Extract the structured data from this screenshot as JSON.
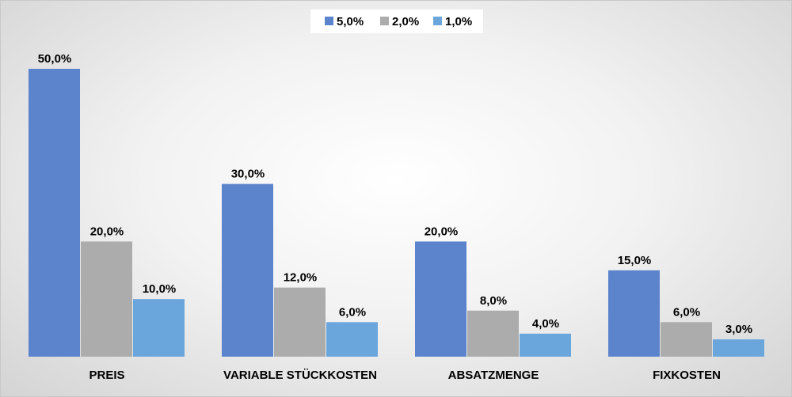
{
  "chart_data": {
    "type": "bar",
    "categories": [
      "PREIS",
      "VARIABLE STÜCKKOSTEN",
      "ABSATZMENGE",
      "FIXKOSTEN"
    ],
    "series": [
      {
        "name": "5,0%",
        "color": "#5b84cc",
        "values": [
          50.0,
          30.0,
          20.0,
          15.0
        ],
        "labels": [
          "50,0%",
          "30,0%",
          "20,0%",
          "15,0%"
        ]
      },
      {
        "name": "2,0%",
        "color": "#acacac",
        "values": [
          20.0,
          12.0,
          8.0,
          6.0
        ],
        "labels": [
          "20,0%",
          "12,0%",
          "8,0%",
          "6,0%"
        ]
      },
      {
        "name": "1,0%",
        "color": "#6aa5db",
        "values": [
          10.0,
          6.0,
          4.0,
          3.0
        ],
        "labels": [
          "10,0%",
          "6,0%",
          "4,0%",
          "3,0%"
        ]
      }
    ],
    "ylim": [
      0,
      50
    ],
    "grid": false,
    "legend_position": "top-center"
  }
}
